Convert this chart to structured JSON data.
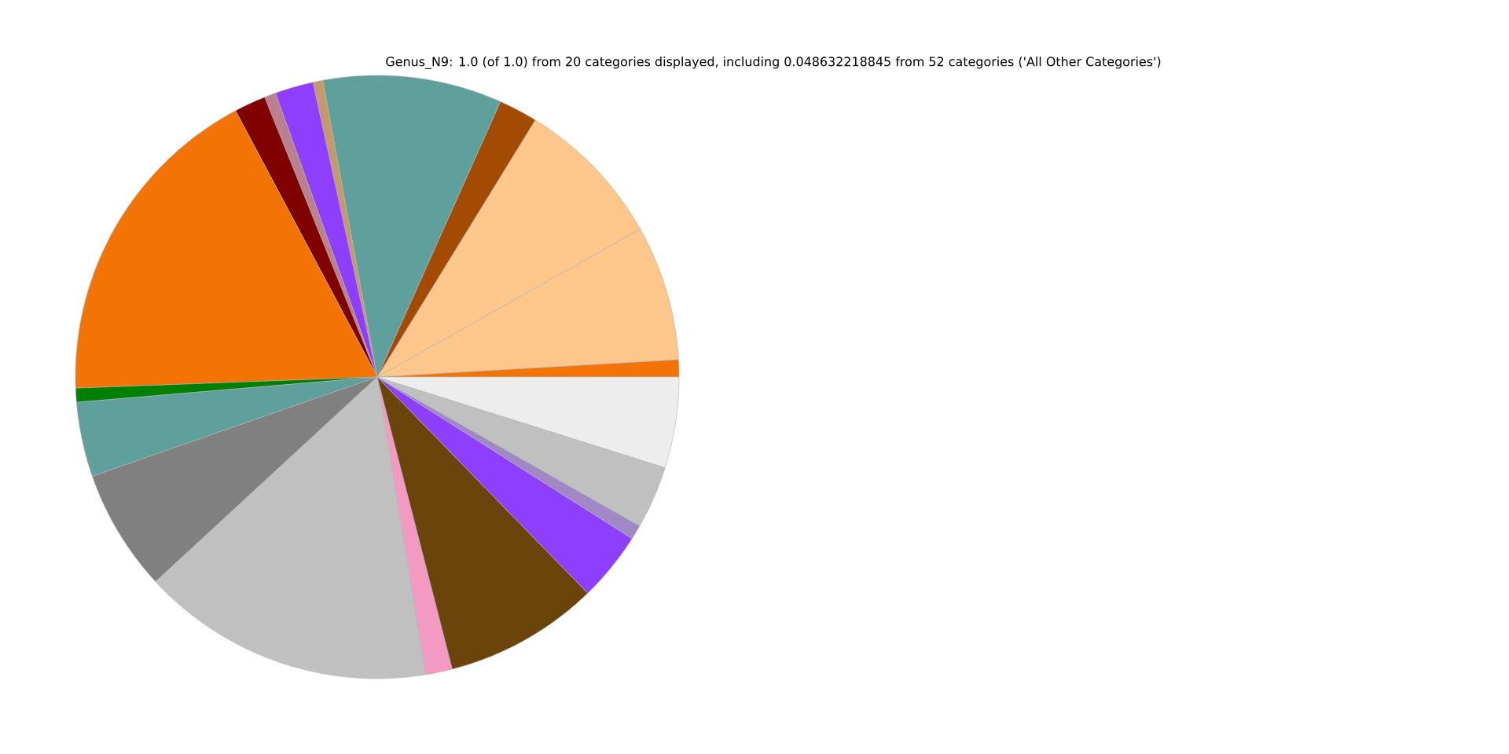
{
  "chart_data": {
    "type": "pie",
    "title": "Genus_N9: 1.0 (of 1.0) from 20 categories displayed, including 0.048632218845 from 52 categories ('All Other Categories')",
    "categories": [
      null,
      null,
      null,
      null,
      null,
      null,
      null,
      null,
      null,
      null,
      null,
      null,
      null,
      null,
      null,
      null,
      null,
      null,
      null,
      null
    ],
    "values": [
      0.92,
      7.25,
      8.06,
      2.08,
      9.58,
      0.53,
      2.06,
      0.61,
      1.69,
      17.81,
      0.75,
      4.0,
      6.53,
      15.71,
      1.42,
      8.28,
      3.72,
      0.78,
      3.36,
      4.86
    ],
    "colors": [
      "#f37304",
      "#fdc78b",
      "#fdc78b",
      "#a34a03",
      "#5fa09d",
      "#c49a6c",
      "#8e3ffe",
      "#bb8090",
      "#800000",
      "#f37304",
      "#008000",
      "#5fa09d",
      "#808080",
      "#c0c0c0",
      "#f49ac2",
      "#6b440c",
      "#8e3ffe",
      "#9f88c4",
      "#c0c0c0",
      "#ededed"
    ]
  }
}
